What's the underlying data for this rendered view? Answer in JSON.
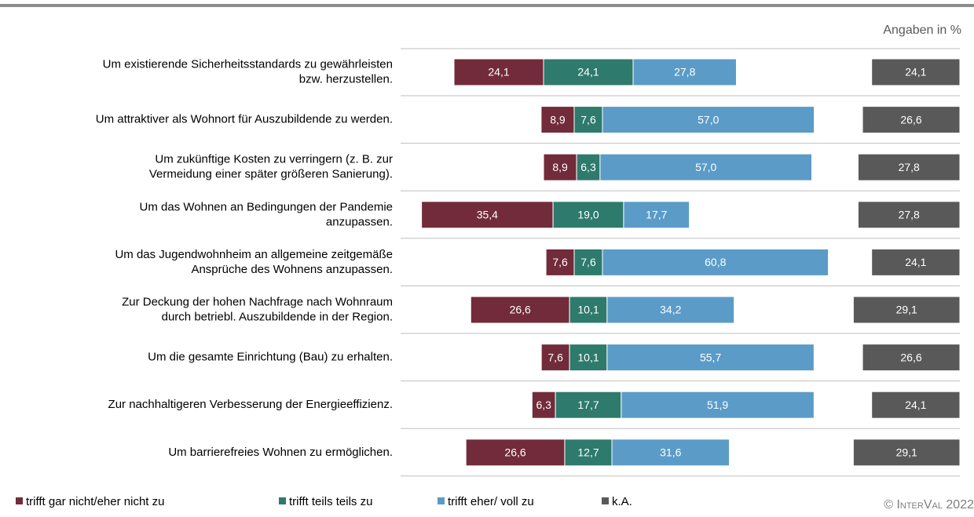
{
  "chart_data": {
    "type": "bar",
    "note": "Angaben in %",
    "source": "© InterVal 2022",
    "categories": [
      [
        "Um existierende Sicherheitsstandards zu gewährleisten",
        "bzw. herzustellen."
      ],
      [
        "Um attraktiver als Wohnort für Auszubildende zu werden."
      ],
      [
        "Um zukünftige Kosten zu verringern (z. B. zur",
        "Vermeidung einer später größeren Sanierung)."
      ],
      [
        "Um das Wohnen an Bedingungen der Pandemie",
        "anzupassen."
      ],
      [
        "Um das Jugendwohnheim an allgemeine zeitgemäße",
        "Ansprüche des Wohnens anzupassen."
      ],
      [
        "Zur Deckung der hohen Nachfrage nach Wohnraum",
        "durch betriebl. Auszubildende in der Region."
      ],
      [
        "Um die gesamte Einrichtung (Bau) zu erhalten."
      ],
      [
        "Zur nachhaltigeren Verbesserung der Energieeffizienz."
      ],
      [
        "Um barrierefreies Wohnen zu ermöglichen."
      ]
    ],
    "series": [
      {
        "name": "trifft gar nicht/eher nicht zu",
        "color": "#722b3a",
        "values": [
          24.1,
          8.9,
          8.9,
          35.4,
          7.6,
          26.6,
          7.6,
          6.3,
          26.6
        ],
        "value_labels": [
          "24,1",
          "8,9",
          "8,9",
          "35,4",
          "7,6",
          "26,6",
          "7,6",
          "6,3",
          "26,6"
        ]
      },
      {
        "name": "trifft teils teils zu",
        "color": "#2e7a6c",
        "values": [
          24.1,
          7.6,
          6.3,
          19.0,
          7.6,
          10.1,
          10.1,
          17.7,
          12.7
        ],
        "value_labels": [
          "24,1",
          "7,6",
          "6,3",
          "19,0",
          "7,6",
          "10,1",
          "10,1",
          "17,7",
          "12,7"
        ]
      },
      {
        "name": "trifft eher/ voll zu",
        "color": "#5b9bc8",
        "values": [
          27.8,
          57.0,
          57.0,
          17.7,
          60.8,
          34.2,
          55.7,
          51.9,
          31.6
        ],
        "value_labels": [
          "27,8",
          "57,0",
          "57,0",
          "17,7",
          "60,8",
          "34,2",
          "55,7",
          "51,9",
          "31,6"
        ]
      },
      {
        "name": "k.A.",
        "color": "#595959",
        "values": [
          24.1,
          26.6,
          27.8,
          27.8,
          24.1,
          29.1,
          26.6,
          24.1,
          29.1
        ],
        "value_labels": [
          "24,1",
          "26,6",
          "27,8",
          "27,8",
          "24,1",
          "29,1",
          "26,6",
          "24,1",
          "29,1"
        ]
      }
    ]
  }
}
